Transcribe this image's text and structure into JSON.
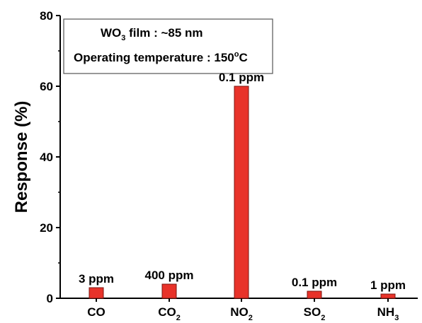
{
  "chart_data": {
    "type": "bar",
    "categories": [
      {
        "main": "CO",
        "sub": ""
      },
      {
        "main": "CO",
        "sub": "2"
      },
      {
        "main": "NO",
        "sub": "2"
      },
      {
        "main": "SO",
        "sub": "2"
      },
      {
        "main": "NH",
        "sub": "3"
      }
    ],
    "values": [
      3,
      4,
      60,
      2,
      1.2
    ],
    "data_labels": [
      "3 ppm",
      "400 ppm",
      "0.1 ppm",
      "0.1 ppm",
      "1 ppm"
    ],
    "ylabel": "Response (%)",
    "xlabel": "",
    "ylim": [
      0,
      80
    ],
    "yticks": [
      "0",
      "20",
      "40",
      "60",
      "80"
    ],
    "bar_color": "#e8332a",
    "grid": false,
    "legend_box": {
      "line1": {
        "pre": "WO",
        "sub": "3",
        "post": " film : ~85 nm"
      },
      "line2": {
        "pre": "Operating temperature : 150",
        "sup": "o",
        "post": "C"
      }
    }
  }
}
